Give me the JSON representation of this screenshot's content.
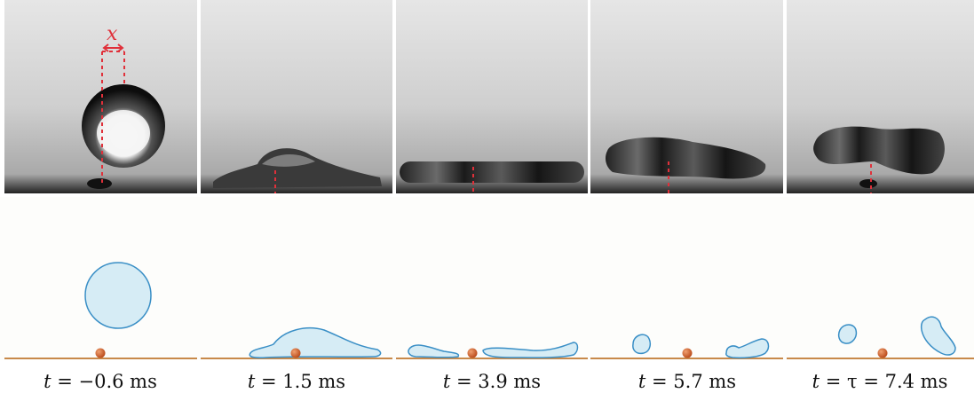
{
  "annotation": {
    "x_label": "x"
  },
  "captions": [
    {
      "var": "t",
      "rest": " = −0.6 ms"
    },
    {
      "var": "t",
      "rest": " = 1.5 ms"
    },
    {
      "var": "t",
      "rest": " = 3.9 ms"
    },
    {
      "var": "t",
      "rest": " = 5.7 ms"
    },
    {
      "var": "t",
      "rest": " = τ = 7.4 ms"
    }
  ],
  "colors": {
    "annotation": "#e0303a",
    "droplet_fill": "#d6ecf5",
    "droplet_stroke": "#3a8fc6",
    "ground": "#c8894a",
    "particle": "#d7642a"
  }
}
